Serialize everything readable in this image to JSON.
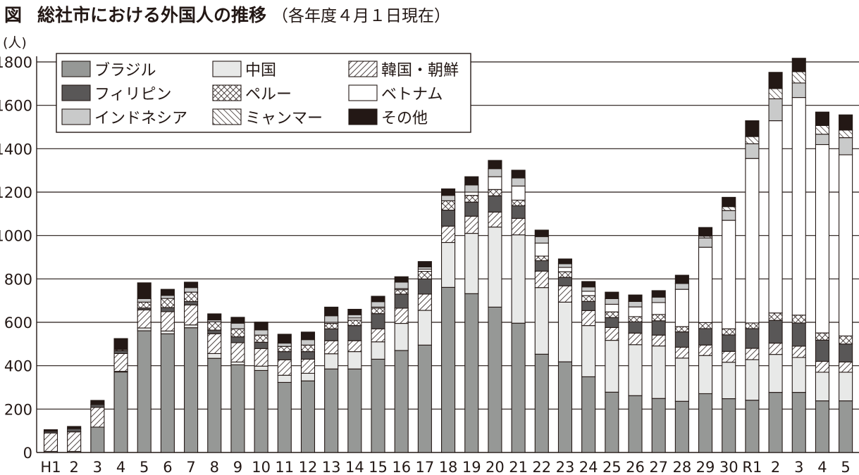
{
  "header": {
    "figure_label": "図",
    "title": "総社市における外国人の推移",
    "subtitle": "（各年度４月１日現在）",
    "y_unit": "(人)"
  },
  "chart_data": {
    "type": "bar",
    "stacked": true,
    "title": "総社市における外国人の推移（各年度４月１日現在）",
    "xlabel": "",
    "ylabel": "(人)",
    "ylim": [
      0,
      1800
    ],
    "yticks": [
      0,
      200,
      400,
      600,
      800,
      1000,
      1200,
      1400,
      1600,
      1800
    ],
    "grid": true,
    "legend_position": "top-left",
    "categories": [
      "H1",
      "2",
      "3",
      "4",
      "5",
      "6",
      "7",
      "8",
      "9",
      "10",
      "11",
      "12",
      "13",
      "14",
      "15",
      "16",
      "17",
      "18",
      "19",
      "20",
      "21",
      "22",
      "23",
      "24",
      "25",
      "26",
      "27",
      "28",
      "29",
      "30",
      "R1",
      "2",
      "3",
      "4",
      "5"
    ],
    "series": [
      {
        "name": "ブラジル",
        "fill": "#969896",
        "pattern": "solid",
        "values": [
          5,
          5,
          117,
          371,
          561,
          547,
          575,
          434,
          404,
          378,
          323,
          330,
          385,
          385,
          430,
          470,
          495,
          761,
          732,
          670,
          596,
          453,
          418,
          349,
          278,
          262,
          249,
          236,
          271,
          248,
          241,
          277,
          277,
          238,
          238
        ]
      },
      {
        "name": "中国",
        "fill": "#e8e9e8",
        "pattern": "solid",
        "values": [
          0,
          0,
          0,
          3,
          13,
          13,
          13,
          22,
          13,
          20,
          33,
          35,
          70,
          80,
          80,
          125,
          160,
          207,
          278,
          369,
          407,
          307,
          275,
          236,
          239,
          235,
          242,
          199,
          176,
          168,
          187,
          175,
          161,
          132,
          132
        ]
      },
      {
        "name": "韓国・朝鮮",
        "fill": "#ffffff",
        "pattern": "backslash",
        "values": [
          85,
          90,
          91,
          82,
          83,
          89,
          92,
          91,
          89,
          81,
          71,
          65,
          60,
          50,
          60,
          70,
          75,
          75,
          79,
          69,
          76,
          76,
          75,
          69,
          59,
          53,
          50,
          50,
          48,
          50,
          52,
          52,
          52,
          50,
          47
        ]
      },
      {
        "name": "フィリピン",
        "fill": "#595757",
        "pattern": "solid",
        "values": [
          8,
          15,
          13,
          13,
          9,
          19,
          16,
          17,
          27,
          29,
          38,
          35,
          55,
          70,
          70,
          65,
          70,
          74,
          65,
          75,
          58,
          48,
          39,
          42,
          46,
          52,
          66,
          71,
          76,
          76,
          91,
          105,
          107,
          98,
          83
        ]
      },
      {
        "name": "ペルー",
        "fill": "#ffffff",
        "pattern": "cross",
        "values": [
          0,
          0,
          0,
          5,
          27,
          42,
          43,
          38,
          37,
          33,
          24,
          30,
          25,
          25,
          25,
          20,
          35,
          43,
          31,
          29,
          26,
          21,
          26,
          27,
          26,
          24,
          29,
          24,
          28,
          28,
          26,
          34,
          36,
          33,
          37
        ]
      },
      {
        "name": "ベトナム",
        "fill": "#ffffff",
        "pattern": "solid",
        "values": [
          0,
          0,
          0,
          0,
          0,
          0,
          0,
          0,
          0,
          0,
          0,
          0,
          5,
          10,
          5,
          5,
          10,
          0,
          15,
          59,
          65,
          60,
          20,
          20,
          35,
          45,
          55,
          172,
          347,
          500,
          758,
          886,
          1003,
          868,
          835
        ]
      },
      {
        "name": "インドネシア",
        "fill": "#c9caca",
        "pattern": "solid",
        "values": [
          0,
          0,
          0,
          0,
          16,
          14,
          21,
          9,
          26,
          24,
          15,
          25,
          30,
          15,
          25,
          30,
          10,
          25,
          33,
          37,
          37,
          30,
          17,
          20,
          26,
          25,
          25,
          27,
          43,
          45,
          68,
          101,
          67,
          48,
          79
        ]
      },
      {
        "name": "ミャンマー",
        "fill": "#ffffff",
        "pattern": "slash",
        "values": [
          0,
          0,
          0,
          0,
          0,
          0,
          0,
          0,
          0,
          0,
          0,
          0,
          0,
          0,
          0,
          0,
          0,
          0,
          0,
          0,
          0,
          0,
          0,
          0,
          0,
          0,
          0,
          0,
          8,
          18,
          33,
          47,
          52,
          40,
          35
        ]
      },
      {
        "name": "その他",
        "fill": "#231815",
        "pattern": "solid",
        "values": [
          7,
          10,
          19,
          51,
          73,
          28,
          25,
          28,
          27,
          36,
          41,
          35,
          40,
          25,
          25,
          25,
          25,
          30,
          38,
          38,
          36,
          30,
          22,
          25,
          30,
          30,
          30,
          38,
          40,
          43,
          73,
          75,
          62,
          62,
          70
        ]
      }
    ],
    "legend_order": [
      0,
      3,
      6,
      1,
      4,
      7,
      2,
      5,
      8
    ]
  }
}
